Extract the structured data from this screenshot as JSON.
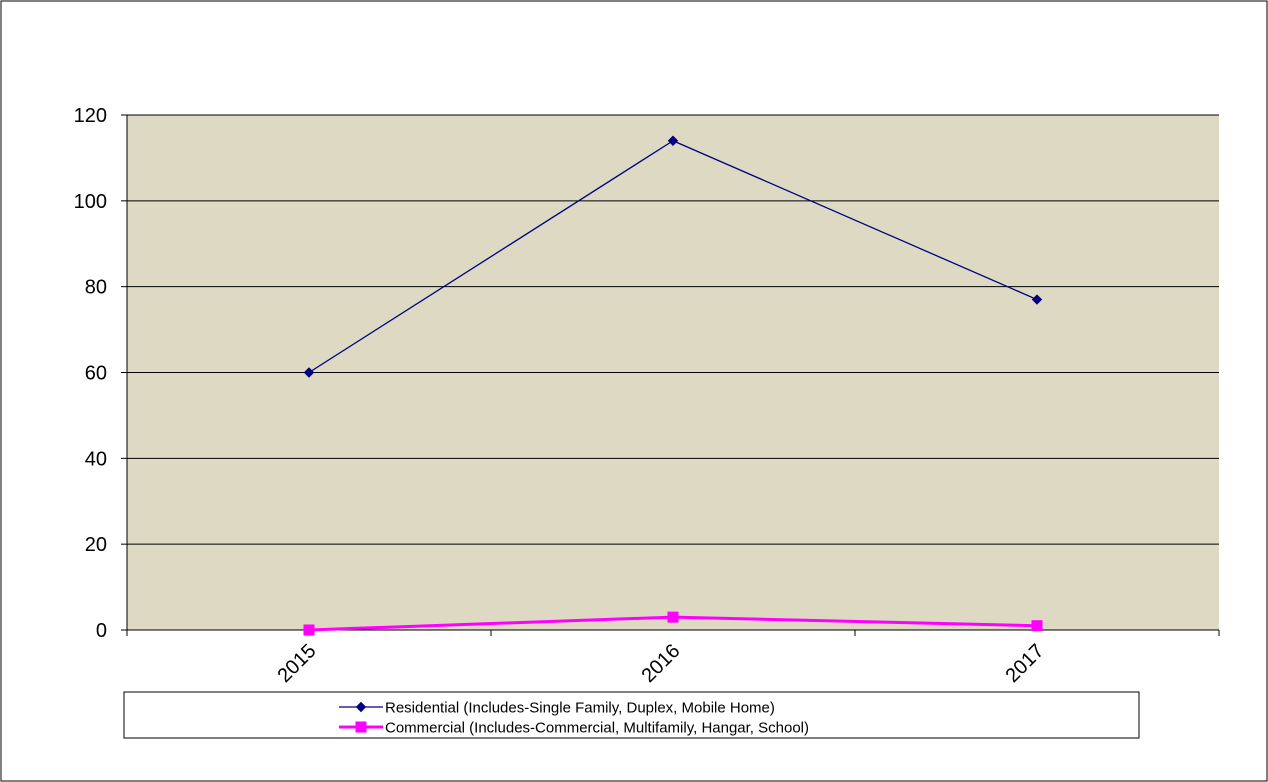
{
  "chart_data": {
    "type": "line",
    "categories": [
      "2015",
      "2016",
      "2017"
    ],
    "ylim": [
      0,
      120
    ],
    "yticks": [
      0,
      20,
      40,
      60,
      80,
      100,
      120
    ],
    "grid": true,
    "legend_position": "bottom",
    "plot_background": "#ddd9c3",
    "series": [
      {
        "name": "Residential (Includes-Single Family, Duplex, Mobile Home)",
        "values": [
          60,
          114,
          77
        ],
        "color": "#000080",
        "marker": "diamond"
      },
      {
        "name": "Commercial (Includes-Commercial, Multifamily, Hangar, School)",
        "values": [
          0,
          3,
          1
        ],
        "color": "#ff00ff",
        "marker": "square"
      }
    ]
  }
}
